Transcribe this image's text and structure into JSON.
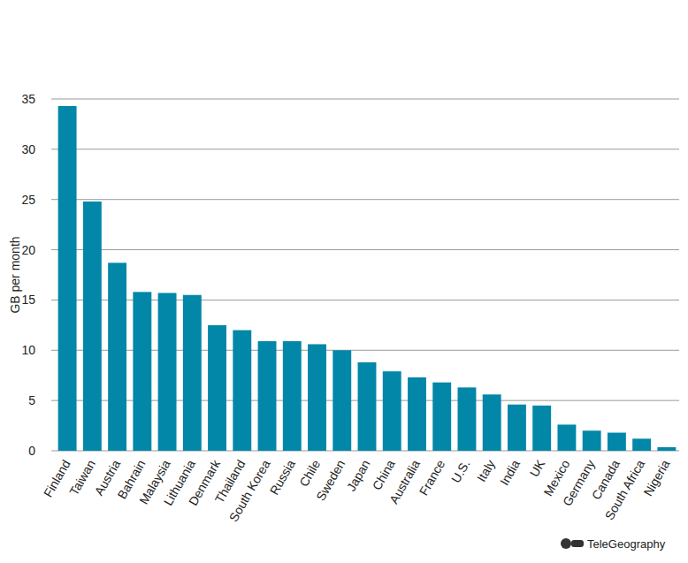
{
  "chart_data": {
    "type": "bar",
    "y_label": "GB per month",
    "source": "TeleGeography",
    "categories": [
      "Finland",
      "Taiwan",
      "Austria",
      "Bahrain",
      "Malaysia",
      "Lithuania",
      "Denmark",
      "Thailand",
      "South Korea",
      "Russia",
      "Chile",
      "Sweden",
      "Japan",
      "China",
      "Australia",
      "France",
      "U.S.",
      "Italy",
      "India",
      "UK",
      "Mexico",
      "Germany",
      "Canada",
      "South Africa",
      "Nigeria"
    ],
    "values": [
      34.3,
      24.8,
      18.7,
      15.8,
      15.7,
      15.5,
      12.5,
      12.0,
      10.9,
      10.9,
      10.6,
      10.0,
      8.8,
      7.9,
      7.3,
      6.8,
      6.3,
      5.6,
      4.6,
      4.5,
      2.6,
      2.0,
      1.8,
      1.2,
      0.35
    ],
    "color": "#0287a8",
    "ylim": [
      0,
      35
    ],
    "yticks": [
      0,
      5,
      10,
      15,
      20,
      25,
      30,
      35
    ],
    "grid": true
  }
}
